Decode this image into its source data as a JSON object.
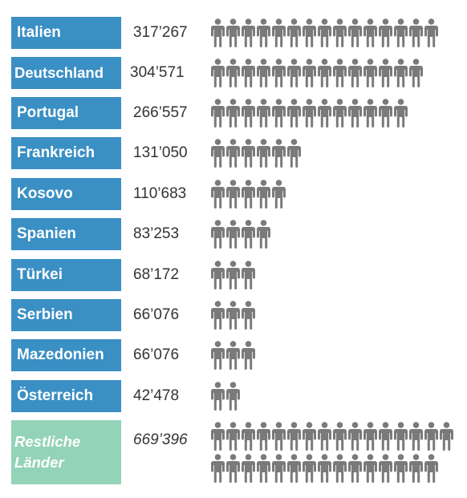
{
  "chart_data": {
    "type": "pictograph",
    "title": "",
    "unit_icon": "person-icon",
    "colors": {
      "label": "#3a8fc4",
      "rest_label": "#93d3b8",
      "icon": "#7a7a7a",
      "value_text": "#333333"
    },
    "categories": [
      "Italien",
      "Deutschland",
      "Portugal",
      "Frankreich",
      "Kosovo",
      "Spanien",
      "Türkei",
      "Serbien",
      "Mazedonien",
      "Österreich",
      "Restliche Länder"
    ],
    "value_labels": [
      "317’267",
      "304’571",
      "266’557",
      "131’050",
      "110’683",
      "83’253",
      "68’172",
      "66’076",
      "66’076",
      "42’478",
      "669’396"
    ],
    "values": [
      317267,
      304571,
      266557,
      131050,
      110683,
      83253,
      68172,
      66076,
      66076,
      42478,
      669396
    ],
    "icon_counts": [
      15,
      14,
      13,
      6,
      5,
      4,
      3,
      3,
      3,
      2,
      31
    ]
  }
}
